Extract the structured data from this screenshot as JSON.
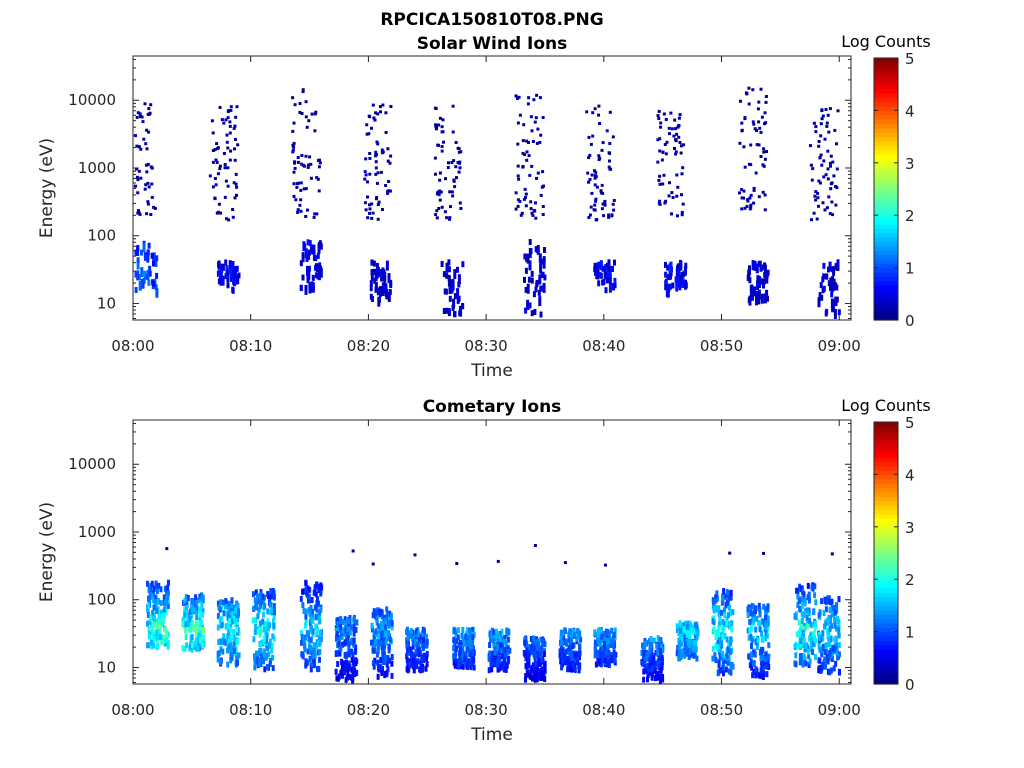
{
  "figure": {
    "filename_title": "RPCICA150810T08.PNG"
  },
  "colormap": {
    "name": "jet",
    "stops": [
      "#00007f",
      "#0000ff",
      "#007fff",
      "#00ffff",
      "#7fff7f",
      "#ffff00",
      "#ff7f00",
      "#ff0000",
      "#7f0000"
    ]
  },
  "chart_data": [
    {
      "type": "heatmap",
      "title": "Solar Wind Ions",
      "xlabel": "Time",
      "ylabel": "Energy (eV)",
      "y_scale": "log",
      "xlim": [
        "08:00",
        "09:01"
      ],
      "ylim": [
        5.7,
        45000
      ],
      "x_ticks": [
        "08:00",
        "08:10",
        "08:20",
        "08:30",
        "08:40",
        "08:50",
        "09:00"
      ],
      "y_ticks": [
        10,
        100,
        1000,
        10000
      ],
      "y_tick_labels": [
        "10",
        "100",
        "1000",
        "10000"
      ],
      "colorbar": {
        "label": "Log Counts",
        "range": [
          0,
          5
        ],
        "ticks": [
          "0",
          "1",
          "2",
          "3",
          "4",
          "5"
        ]
      },
      "bursts": [
        {
          "t": "08:01",
          "low_energy_range": [
            17,
            90
          ],
          "high_energy_range": [
            180,
            12000
          ],
          "peak_log_counts": 1.3
        },
        {
          "t": "08:08",
          "low_energy_range": [
            17,
            45
          ],
          "high_energy_range": [
            180,
            9000
          ],
          "peak_log_counts": 0.8
        },
        {
          "t": "08:15",
          "low_energy_range": [
            17,
            90
          ],
          "high_energy_range": [
            180,
            16000
          ],
          "peak_log_counts": 0.7
        },
        {
          "t": "08:21",
          "low_energy_range": [
            12,
            45
          ],
          "high_energy_range": [
            180,
            9000
          ],
          "peak_log_counts": 0.5
        },
        {
          "t": "08:27",
          "low_energy_range": [
            6,
            45
          ],
          "high_energy_range": [
            180,
            9000
          ],
          "peak_log_counts": 0.5
        },
        {
          "t": "08:34",
          "low_energy_range": [
            6,
            90
          ],
          "high_energy_range": [
            180,
            16000
          ],
          "peak_log_counts": 0.5
        },
        {
          "t": "08:40",
          "low_energy_range": [
            17,
            45
          ],
          "high_energy_range": [
            180,
            9000
          ],
          "peak_log_counts": 0.8
        },
        {
          "t": "08:46",
          "low_energy_range": [
            17,
            45
          ],
          "high_energy_range": [
            180,
            9000
          ],
          "peak_log_counts": 0.8
        },
        {
          "t": "08:53",
          "low_energy_range": [
            12,
            45
          ],
          "high_energy_range": [
            180,
            16000
          ],
          "peak_log_counts": 0.5
        },
        {
          "t": "08:59",
          "low_energy_range": [
            6,
            45
          ],
          "high_energy_range": [
            180,
            9000
          ],
          "peak_log_counts": 0.6
        }
      ]
    },
    {
      "type": "heatmap",
      "title": "Cometary Ions",
      "xlabel": "Time",
      "ylabel": "Energy (eV)",
      "y_scale": "log",
      "xlim": [
        "08:00",
        "09:01"
      ],
      "ylim": [
        5.7,
        45000
      ],
      "x_ticks": [
        "08:00",
        "08:10",
        "08:20",
        "08:30",
        "08:40",
        "08:50",
        "09:00"
      ],
      "y_ticks": [
        10,
        100,
        1000,
        10000
      ],
      "y_tick_labels": [
        "10",
        "100",
        "1000",
        "10000"
      ],
      "colorbar": {
        "label": "Log Counts",
        "range": [
          0,
          5
        ],
        "ticks": [
          "0",
          "1",
          "2",
          "3",
          "4",
          "5"
        ]
      },
      "bursts": [
        {
          "t": "08:02",
          "energy_range": [
            22,
            200
          ],
          "peak_log_counts": 2.6
        },
        {
          "t": "08:05",
          "energy_range": [
            20,
            130
          ],
          "peak_log_counts": 2.6
        },
        {
          "t": "08:08",
          "energy_range": [
            12,
            110
          ],
          "peak_log_counts": 2.3
        },
        {
          "t": "08:11",
          "energy_range": [
            10,
            150
          ],
          "peak_log_counts": 2.3
        },
        {
          "t": "08:15",
          "energy_range": [
            10,
            200
          ],
          "peak_log_counts": 2.0
        },
        {
          "t": "08:18",
          "energy_range": [
            7,
            60
          ],
          "peak_log_counts": 1.5
        },
        {
          "t": "08:21",
          "energy_range": [
            8,
            80
          ],
          "peak_log_counts": 1.7
        },
        {
          "t": "08:24",
          "energy_range": [
            10,
            40
          ],
          "peak_log_counts": 1.5
        },
        {
          "t": "08:28",
          "energy_range": [
            11,
            40
          ],
          "peak_log_counts": 1.7
        },
        {
          "t": "08:31",
          "energy_range": [
            10,
            40
          ],
          "peak_log_counts": 1.7
        },
        {
          "t": "08:34",
          "energy_range": [
            7,
            30
          ],
          "peak_log_counts": 1.5
        },
        {
          "t": "08:37",
          "energy_range": [
            10,
            40
          ],
          "peak_log_counts": 1.6
        },
        {
          "t": "08:40",
          "energy_range": [
            12,
            40
          ],
          "peak_log_counts": 1.7
        },
        {
          "t": "08:44",
          "energy_range": [
            7,
            30
          ],
          "peak_log_counts": 1.8
        },
        {
          "t": "08:47",
          "energy_range": [
            15,
            50
          ],
          "peak_log_counts": 2.0
        },
        {
          "t": "08:50",
          "energy_range": [
            9,
            150
          ],
          "peak_log_counts": 2.3
        },
        {
          "t": "08:53",
          "energy_range": [
            8,
            90
          ],
          "peak_log_counts": 2.0
        },
        {
          "t": "08:57",
          "energy_range": [
            12,
            200
          ],
          "peak_log_counts": 2.4
        },
        {
          "t": "08:59",
          "energy_range": [
            9,
            120
          ],
          "peak_log_counts": 2.0
        }
      ]
    }
  ]
}
